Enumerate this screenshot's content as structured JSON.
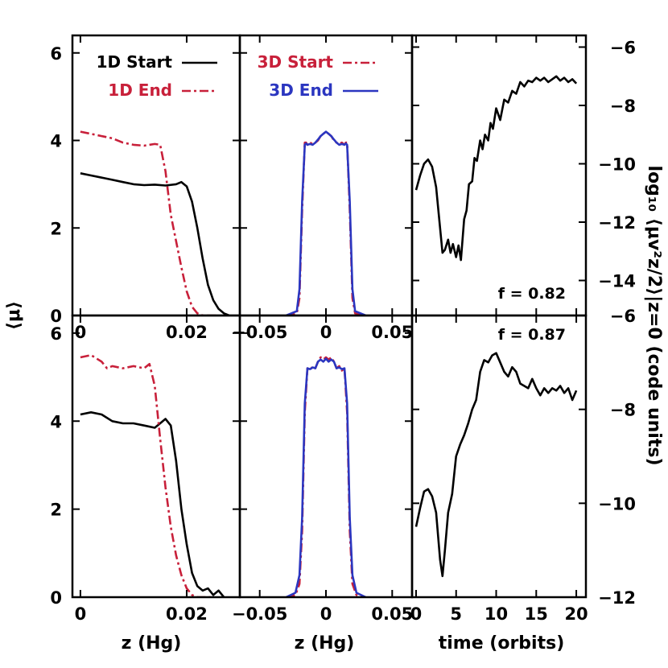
{
  "colors": {
    "black": "#000000",
    "red": "#c8203a",
    "blue": "#2b36c0"
  },
  "labels": {
    "left_ylabel": "⟨μ⟩",
    "right_ylabel": "log₁₀ ⟨μv²z/2⟩|z=0 (code units)",
    "xlabels": [
      "z (Hg)",
      "z (Hg)",
      "time (orbits)"
    ]
  },
  "chart_data": [
    {
      "type": "line",
      "panel": "top-left",
      "xlim": [
        -0.0015,
        0.03
      ],
      "ylim": [
        0,
        6.4
      ],
      "xticks": [
        0,
        0.02
      ],
      "xtick_labels": [
        "0",
        "0.02"
      ],
      "yticks": [
        0,
        2,
        4,
        6
      ],
      "ytick_labels": [
        "0",
        "2",
        "4",
        "6"
      ],
      "series": [
        {
          "name": "1D Start",
          "color": "black",
          "dash": "solid",
          "x": [
            0,
            0.002,
            0.004,
            0.006,
            0.008,
            0.01,
            0.012,
            0.014,
            0.016,
            0.018,
            0.019,
            0.02,
            0.021,
            0.022,
            0.023,
            0.024,
            0.025,
            0.026,
            0.027,
            0.028
          ],
          "y": [
            3.25,
            3.2,
            3.15,
            3.1,
            3.05,
            3.0,
            2.98,
            2.99,
            2.97,
            3.0,
            3.05,
            2.95,
            2.6,
            2.0,
            1.3,
            0.7,
            0.35,
            0.15,
            0.05,
            0
          ]
        },
        {
          "name": "1D End",
          "color": "red",
          "dash": "dashdot",
          "x": [
            0,
            0.002,
            0.004,
            0.006,
            0.008,
            0.01,
            0.012,
            0.014,
            0.015,
            0.016,
            0.017,
            0.018,
            0.019,
            0.02,
            0.021,
            0.022,
            0.023,
            0.026
          ],
          "y": [
            4.2,
            4.15,
            4.1,
            4.05,
            3.95,
            3.9,
            3.88,
            3.92,
            3.9,
            3.3,
            2.3,
            1.7,
            1.1,
            0.55,
            0.2,
            0.05,
            0,
            0
          ]
        }
      ]
    },
    {
      "type": "line",
      "panel": "top-middle",
      "xlim": [
        -0.065,
        0.065
      ],
      "ylim": [
        0,
        6.4
      ],
      "xticks": [
        -0.05,
        0,
        0.05
      ],
      "xtick_labels": [
        "−0.05",
        "0",
        "0.05"
      ],
      "yticks": [
        0,
        2,
        4,
        6
      ],
      "ytick_labels": [],
      "series": [
        {
          "name": "3D Start",
          "color": "red",
          "dash": "dashdot",
          "x": [
            -0.03,
            -0.022,
            -0.02,
            -0.018,
            -0.016,
            -0.015,
            -0.014,
            -0.012,
            -0.01,
            -0.008,
            -0.006,
            -0.004,
            -0.002,
            0,
            0.002,
            0.004,
            0.006,
            0.008,
            0.01,
            0.012,
            0.014,
            0.015,
            0.016,
            0.018,
            0.02,
            0.022,
            0.03
          ],
          "y": [
            0,
            0.05,
            0.4,
            2.4,
            3.95,
            3.95,
            3.9,
            3.95,
            3.92,
            3.95,
            4.0,
            4.1,
            4.15,
            4.2,
            4.15,
            4.1,
            4.0,
            3.95,
            3.92,
            3.95,
            3.9,
            3.95,
            3.95,
            2.4,
            0.4,
            0.05,
            0
          ]
        },
        {
          "name": "3D End",
          "color": "blue",
          "dash": "solid",
          "x": [
            -0.03,
            -0.022,
            -0.02,
            -0.018,
            -0.016,
            -0.015,
            -0.014,
            -0.012,
            -0.01,
            -0.008,
            -0.006,
            -0.004,
            -0.002,
            0,
            0.002,
            0.004,
            0.006,
            0.008,
            0.01,
            0.012,
            0.014,
            0.015,
            0.016,
            0.018,
            0.02,
            0.022,
            0.03
          ],
          "y": [
            0,
            0.1,
            0.6,
            2.6,
            3.9,
            3.93,
            3.9,
            3.92,
            3.9,
            3.95,
            4.02,
            4.1,
            4.15,
            4.2,
            4.15,
            4.1,
            4.02,
            3.95,
            3.9,
            3.92,
            3.9,
            3.93,
            3.9,
            2.6,
            0.6,
            0.1,
            0
          ]
        }
      ]
    },
    {
      "type": "line",
      "panel": "top-right",
      "xlim": [
        -0.5,
        21.2
      ],
      "ylim": [
        -15.2,
        -5.6
      ],
      "xticks": [
        0,
        5,
        10,
        15,
        20
      ],
      "xtick_labels": [],
      "yticks": [
        -6,
        -8,
        -10,
        -12,
        -14
      ],
      "ytick_labels": [
        "−6",
        "−8",
        "−10",
        "−12",
        "−14"
      ],
      "annotation": "f = 0.82",
      "series": [
        {
          "name": "",
          "color": "black",
          "dash": "solid",
          "x": [
            0,
            0.5,
            1,
            1.5,
            2,
            2.5,
            3,
            3.3,
            3.6,
            4,
            4.3,
            4.6,
            5,
            5.3,
            5.6,
            6,
            6.3,
            6.6,
            7,
            7.3,
            7.6,
            8,
            8.3,
            8.6,
            9,
            9.3,
            9.6,
            10,
            10.5,
            11,
            11.5,
            12,
            12.5,
            13,
            13.5,
            14,
            14.5,
            15,
            15.5,
            16,
            16.5,
            17,
            17.5,
            18,
            18.5,
            19,
            19.5,
            20
          ],
          "y": [
            -10.9,
            -10.4,
            -10.0,
            -9.85,
            -10.1,
            -10.8,
            -12.2,
            -13.05,
            -12.95,
            -12.6,
            -13.05,
            -12.75,
            -13.2,
            -12.8,
            -13.3,
            -11.9,
            -11.6,
            -10.7,
            -10.6,
            -9.8,
            -9.9,
            -9.2,
            -9.5,
            -9.0,
            -9.2,
            -8.6,
            -8.8,
            -8.1,
            -8.5,
            -7.8,
            -7.9,
            -7.5,
            -7.6,
            -7.2,
            -7.35,
            -7.15,
            -7.2,
            -7.05,
            -7.15,
            -7.05,
            -7.2,
            -7.1,
            -7.0,
            -7.15,
            -7.05,
            -7.2,
            -7.1,
            -7.25
          ]
        }
      ]
    },
    {
      "type": "line",
      "panel": "bottom-left",
      "xlim": [
        -0.0015,
        0.03
      ],
      "ylim": [
        0,
        6.4
      ],
      "xticks": [
        0,
        0.02
      ],
      "xtick_labels": [
        "0",
        "0.02"
      ],
      "yticks": [
        0,
        2,
        4,
        6
      ],
      "ytick_labels": [
        "0",
        "2",
        "4",
        "6"
      ],
      "series": [
        {
          "name": "1D Start",
          "color": "black",
          "dash": "solid",
          "x": [
            0,
            0.002,
            0.004,
            0.006,
            0.008,
            0.01,
            0.012,
            0.014,
            0.015,
            0.016,
            0.017,
            0.018,
            0.019,
            0.02,
            0.021,
            0.022,
            0.023,
            0.024,
            0.025,
            0.026,
            0.027
          ],
          "y": [
            4.15,
            4.2,
            4.15,
            4.0,
            3.95,
            3.95,
            3.9,
            3.85,
            3.95,
            4.05,
            3.9,
            3.1,
            2.0,
            1.2,
            0.55,
            0.25,
            0.15,
            0.2,
            0.05,
            0.15,
            0
          ]
        },
        {
          "name": "1D End",
          "color": "red",
          "dash": "dashdot",
          "x": [
            0,
            0.002,
            0.004,
            0.005,
            0.006,
            0.008,
            0.01,
            0.012,
            0.013,
            0.014,
            0.015,
            0.016,
            0.017,
            0.018,
            0.019,
            0.02,
            0.021,
            0.022,
            0.025
          ],
          "y": [
            5.45,
            5.5,
            5.35,
            5.2,
            5.25,
            5.2,
            5.25,
            5.2,
            5.3,
            4.8,
            3.6,
            2.5,
            1.6,
            0.95,
            0.5,
            0.2,
            0.05,
            0,
            0
          ]
        }
      ]
    },
    {
      "type": "line",
      "panel": "bottom-middle",
      "xlim": [
        -0.065,
        0.065
      ],
      "ylim": [
        0,
        6.4
      ],
      "xticks": [
        -0.05,
        0,
        0.05
      ],
      "xtick_labels": [
        "−0.05",
        "0",
        "0.05"
      ],
      "yticks": [
        0,
        2,
        4,
        6
      ],
      "ytick_labels": [],
      "series": [
        {
          "name": "3D Start",
          "color": "red",
          "dash": "dashdot",
          "x": [
            -0.03,
            -0.023,
            -0.02,
            -0.018,
            -0.016,
            -0.014,
            -0.012,
            -0.01,
            -0.008,
            -0.006,
            -0.004,
            -0.002,
            0,
            0.002,
            0.004,
            0.006,
            0.008,
            0.01,
            0.012,
            0.014,
            0.016,
            0.018,
            0.02,
            0.023,
            0.03
          ],
          "y": [
            0,
            0.05,
            0.3,
            1.5,
            4.2,
            5.2,
            5.15,
            5.25,
            5.2,
            5.35,
            5.45,
            5.4,
            5.45,
            5.4,
            5.45,
            5.35,
            5.2,
            5.25,
            5.15,
            5.2,
            4.2,
            1.5,
            0.3,
            0.05,
            0
          ]
        },
        {
          "name": "3D End",
          "color": "blue",
          "dash": "solid",
          "x": [
            -0.03,
            -0.023,
            -0.02,
            -0.018,
            -0.016,
            -0.014,
            -0.012,
            -0.01,
            -0.008,
            -0.006,
            -0.004,
            -0.002,
            0,
            0.002,
            0.004,
            0.006,
            0.008,
            0.01,
            0.012,
            0.014,
            0.016,
            0.018,
            0.02,
            0.023,
            0.03
          ],
          "y": [
            0,
            0.1,
            0.5,
            1.8,
            4.4,
            5.2,
            5.18,
            5.22,
            5.2,
            5.35,
            5.4,
            5.35,
            5.42,
            5.35,
            5.4,
            5.35,
            5.2,
            5.22,
            5.18,
            5.2,
            4.4,
            1.8,
            0.5,
            0.1,
            0
          ]
        }
      ]
    },
    {
      "type": "line",
      "panel": "bottom-right",
      "xlim": [
        -0.5,
        21.2
      ],
      "ylim": [
        -12.0,
        -6.0
      ],
      "xticks": [
        0,
        5,
        10,
        15,
        20
      ],
      "xtick_labels": [
        "0",
        "5",
        "10",
        "15",
        "20"
      ],
      "yticks": [
        -6,
        -8,
        -10,
        -12
      ],
      "ytick_labels": [
        "−6",
        "−8",
        "−10",
        "−12"
      ],
      "annotation": "f = 0.87",
      "series": [
        {
          "name": "",
          "color": "black",
          "dash": "solid",
          "x": [
            0,
            0.5,
            1,
            1.5,
            2,
            2.5,
            3,
            3.3,
            3.6,
            4,
            4.5,
            5,
            5.5,
            6,
            6.5,
            7,
            7.5,
            8,
            8.5,
            9,
            9.5,
            10,
            10.5,
            11,
            11.5,
            12,
            12.5,
            13,
            13.5,
            14,
            14.5,
            15,
            15.5,
            16,
            16.5,
            17,
            17.5,
            18,
            18.5,
            19,
            19.5,
            20
          ],
          "y": [
            -10.5,
            -10.1,
            -9.75,
            -9.7,
            -9.85,
            -10.2,
            -11.2,
            -11.55,
            -11.0,
            -10.2,
            -9.8,
            -9.0,
            -8.75,
            -8.55,
            -8.3,
            -8.0,
            -7.8,
            -7.2,
            -6.95,
            -7.0,
            -6.85,
            -6.8,
            -7.0,
            -7.2,
            -7.3,
            -7.1,
            -7.2,
            -7.45,
            -7.5,
            -7.55,
            -7.35,
            -7.55,
            -7.7,
            -7.55,
            -7.65,
            -7.55,
            -7.6,
            -7.5,
            -7.65,
            -7.55,
            -7.8,
            -7.6
          ]
        }
      ]
    }
  ]
}
